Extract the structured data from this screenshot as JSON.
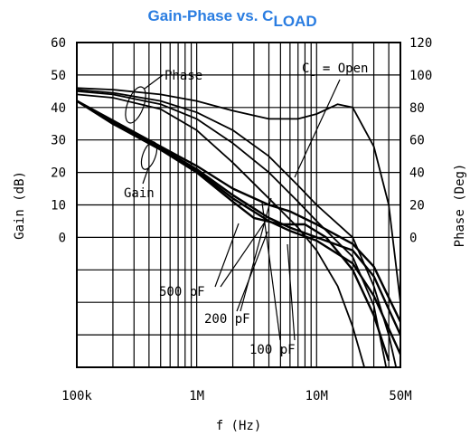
{
  "chart_data": {
    "type": "line",
    "title_main": "Gain-Phase vs. C",
    "title_sub": "LOAD",
    "title_color": "#2a7de1",
    "xlabel": "f (Hz)",
    "ylabel_left": "Gain (dB)",
    "ylabel_right": "Phase (Deg)",
    "x_scale": "log",
    "xlim": [
      100000,
      50000000
    ],
    "x_ticks": [
      {
        "value": 100000,
        "label": "100k"
      },
      {
        "value": 1000000,
        "label": "1M"
      },
      {
        "value": 10000000,
        "label": "10M"
      },
      {
        "value": 50000000,
        "label": "50M"
      }
    ],
    "ylim_gain": [
      -40,
      60
    ],
    "gain_ticks": [
      {
        "value": 60,
        "label": "60"
      },
      {
        "value": 50,
        "label": "50"
      },
      {
        "value": 40,
        "label": "40"
      },
      {
        "value": 30,
        "label": "30"
      },
      {
        "value": 20,
        "label": "20"
      },
      {
        "value": 10,
        "label": "10"
      },
      {
        "value": 0,
        "label": "0"
      }
    ],
    "ylim_phase": [
      -80,
      120
    ],
    "phase_ticks": [
      {
        "value": 120,
        "label": "120"
      },
      {
        "value": 100,
        "label": "100"
      },
      {
        "value": 80,
        "label": "80"
      },
      {
        "value": 60,
        "label": "60"
      },
      {
        "value": 40,
        "label": "40"
      },
      {
        "value": 20,
        "label": "20"
      },
      {
        "value": 0,
        "label": "0"
      }
    ],
    "grid": true,
    "annotations": {
      "phase": "Phase",
      "gain": "Gain",
      "open": "C",
      "open_sub": "L",
      "open_rest": " = Open",
      "c500": "500 pF",
      "c200": "200 pF",
      "c100": "100 pF"
    },
    "series": [
      {
        "group": "gain",
        "load": "Open",
        "points": [
          [
            100000,
            42
          ],
          [
            200000,
            36
          ],
          [
            500000,
            28
          ],
          [
            1000000,
            22
          ],
          [
            2000000,
            15
          ],
          [
            4000000,
            10
          ],
          [
            6000000,
            8
          ],
          [
            10000000,
            4
          ],
          [
            20000000,
            -2
          ],
          [
            30000000,
            -9
          ],
          [
            50000000,
            -26
          ]
        ]
      },
      {
        "group": "gain",
        "load": "100 pF",
        "points": [
          [
            100000,
            42
          ],
          [
            200000,
            35.5
          ],
          [
            500000,
            27.5
          ],
          [
            1000000,
            21
          ],
          [
            2000000,
            13
          ],
          [
            4000000,
            6
          ],
          [
            6000000,
            3
          ],
          [
            10000000,
            0
          ],
          [
            20000000,
            -4
          ],
          [
            30000000,
            -12
          ],
          [
            50000000,
            -30
          ]
        ]
      },
      {
        "group": "gain",
        "load": "200 pF",
        "points": [
          [
            100000,
            42
          ],
          [
            200000,
            35
          ],
          [
            500000,
            27
          ],
          [
            1000000,
            20.5
          ],
          [
            2000000,
            12
          ],
          [
            4000000,
            5
          ],
          [
            6000000,
            2
          ],
          [
            10000000,
            -1
          ],
          [
            20000000,
            -8
          ],
          [
            30000000,
            -18
          ],
          [
            50000000,
            -36
          ]
        ]
      },
      {
        "group": "gain",
        "load": "500 pF",
        "points": [
          [
            100000,
            42
          ],
          [
            200000,
            35
          ],
          [
            500000,
            27
          ],
          [
            1000000,
            20
          ],
          [
            2000000,
            11
          ],
          [
            3000000,
            6
          ],
          [
            5000000,
            4
          ],
          [
            8000000,
            4
          ],
          [
            12000000,
            0
          ],
          [
            20000000,
            -10
          ],
          [
            30000000,
            -24
          ],
          [
            40000000,
            -38
          ]
        ]
      },
      {
        "group": "phase",
        "load": "Open",
        "points": [
          [
            100000,
            92
          ],
          [
            200000,
            91
          ],
          [
            500000,
            88
          ],
          [
            1000000,
            84
          ],
          [
            2000000,
            78
          ],
          [
            4000000,
            73
          ],
          [
            7000000,
            73
          ],
          [
            10000000,
            76
          ],
          [
            15000000,
            82
          ],
          [
            20000000,
            80
          ],
          [
            30000000,
            56
          ],
          [
            40000000,
            20
          ],
          [
            50000000,
            -40
          ]
        ]
      },
      {
        "group": "phase",
        "load": "100 pF",
        "points": [
          [
            100000,
            91
          ],
          [
            200000,
            89
          ],
          [
            500000,
            84
          ],
          [
            1000000,
            77
          ],
          [
            2000000,
            66
          ],
          [
            4000000,
            50
          ],
          [
            7000000,
            32
          ],
          [
            10000000,
            20
          ],
          [
            20000000,
            0
          ],
          [
            30000000,
            -30
          ],
          [
            40000000,
            -60
          ],
          [
            46000000,
            -80
          ]
        ]
      },
      {
        "group": "phase",
        "load": "200 pF",
        "points": [
          [
            100000,
            90
          ],
          [
            200000,
            88
          ],
          [
            500000,
            82
          ],
          [
            1000000,
            73
          ],
          [
            2000000,
            58
          ],
          [
            4000000,
            40
          ],
          [
            7000000,
            22
          ],
          [
            10000000,
            10
          ],
          [
            20000000,
            -12
          ],
          [
            30000000,
            -42
          ],
          [
            38000000,
            -80
          ]
        ]
      },
      {
        "group": "phase",
        "load": "500 pF",
        "points": [
          [
            100000,
            88
          ],
          [
            200000,
            86
          ],
          [
            500000,
            79
          ],
          [
            1000000,
            66
          ],
          [
            2000000,
            46
          ],
          [
            4000000,
            24
          ],
          [
            7000000,
            6
          ],
          [
            10000000,
            -8
          ],
          [
            15000000,
            -30
          ],
          [
            20000000,
            -55
          ],
          [
            25000000,
            -80
          ]
        ]
      }
    ]
  }
}
